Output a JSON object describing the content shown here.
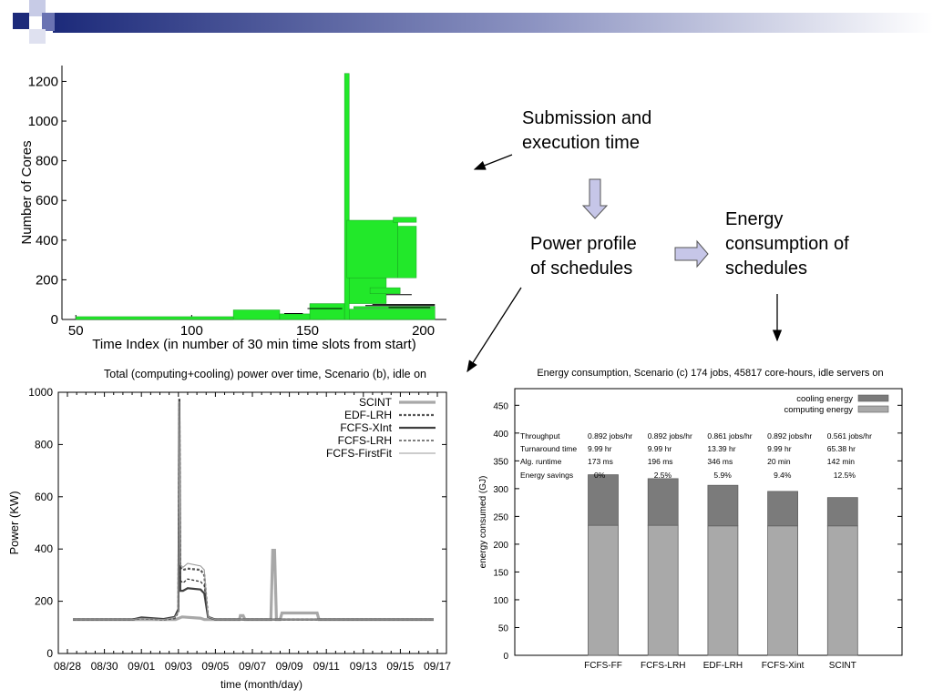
{
  "slide": {
    "labels": {
      "submission": [
        "Submission and",
        "execution time"
      ],
      "power_profile": [
        "Power profile",
        "of schedules"
      ],
      "energy": [
        "Energy",
        "consumption of",
        "schedules"
      ]
    },
    "colors": {
      "header_dark": "#1c2a7a",
      "bright_green": "#22e82a",
      "arrow_fill": "#c6c6e8"
    }
  },
  "chart_data": [
    {
      "type": "bar",
      "title": "",
      "xlabel": "Time Index (in number of 30 min time slots from start)",
      "ylabel": "Number of Cores",
      "xlim": [
        44,
        210
      ],
      "ylim": [
        0,
        1280
      ],
      "xticks": [
        50,
        100,
        150,
        200
      ],
      "yticks": [
        0,
        200,
        400,
        600,
        800,
        1000,
        1200
      ],
      "bar_color": "#22e82a",
      "bars": [
        {
          "x0": 50,
          "x1": 205,
          "y0": 0,
          "y1": 14
        },
        {
          "x0": 118,
          "x1": 138,
          "y0": 0,
          "y1": 48
        },
        {
          "x0": 138,
          "x1": 152,
          "y0": 0,
          "y1": 28
        },
        {
          "x0": 158,
          "x1": 205,
          "y0": 0,
          "y1": 52
        },
        {
          "x0": 151,
          "x1": 166,
          "y0": 0,
          "y1": 80
        },
        {
          "x0": 167,
          "x1": 184,
          "y0": 80,
          "y1": 210
        },
        {
          "x0": 166,
          "x1": 168,
          "y0": 0,
          "y1": 1240
        },
        {
          "x0": 167,
          "x1": 189,
          "y0": 210,
          "y1": 500
        },
        {
          "x0": 189,
          "x1": 197,
          "y0": 210,
          "y1": 470
        },
        {
          "x0": 187,
          "x1": 197,
          "y0": 490,
          "y1": 515
        },
        {
          "x0": 177,
          "x1": 190,
          "y0": 130,
          "y1": 160
        },
        {
          "x0": 170,
          "x1": 205,
          "y0": 55,
          "y1": 65
        }
      ],
      "lines": [
        {
          "x0": 140,
          "x1": 148,
          "y": 30
        },
        {
          "x0": 175,
          "x1": 205,
          "y": 70
        },
        {
          "x0": 178,
          "x1": 205,
          "y": 75
        },
        {
          "x0": 184,
          "x1": 195,
          "y": 125
        },
        {
          "x0": 150,
          "x1": 165,
          "y": 55
        },
        {
          "x0": 185,
          "x1": 203,
          "y": 60
        }
      ]
    },
    {
      "type": "line",
      "title": "Total (computing+cooling) power over time, Scenario (b), idle on",
      "xlabel": "time (month/day)",
      "ylabel": "Power (KW)",
      "xlim": [
        0,
        20
      ],
      "ylim": [
        0,
        1000
      ],
      "xtick_labels": [
        "08/28",
        "08/30",
        "09/01",
        "09/03",
        "09/05",
        "09/07",
        "09/09",
        "09/11",
        "09/13",
        "09/15",
        "09/17"
      ],
      "xtick_values": [
        0,
        2,
        4,
        6,
        8,
        10,
        12,
        14,
        16,
        18,
        20
      ],
      "yticks": [
        0,
        200,
        400,
        600,
        800,
        1000
      ],
      "legend_position": "top-right",
      "series": [
        {
          "name": "SCINT",
          "color": "#a8a8a8",
          "width": 3.2,
          "dash": "",
          "x": [
            0.3,
            5.8,
            5.85,
            6.2,
            7.2,
            7.4,
            9.3,
            9.35,
            9.5,
            9.6,
            11.0,
            11.1,
            11.2,
            11.3,
            11.5,
            11.6,
            13.5,
            13.6,
            19.8
          ],
          "y": [
            130,
            130,
            130,
            140,
            135,
            130,
            130,
            145,
            145,
            130,
            130,
            395,
            395,
            130,
            130,
            155,
            155,
            130,
            130
          ]
        },
        {
          "name": "EDF-LRH",
          "color": "#555555",
          "width": 2.2,
          "dash": "3,2",
          "x": [
            0.3,
            2.0,
            3.5,
            4.0,
            5.2,
            5.8,
            6.0,
            6.05,
            6.1,
            6.25,
            6.5,
            7.2,
            7.4,
            7.6,
            8.0,
            19.8
          ],
          "y": [
            130,
            130,
            130,
            135,
            130,
            135,
            160,
            960,
            330,
            320,
            325,
            320,
            300,
            140,
            130,
            130
          ]
        },
        {
          "name": "FCFS-XInt",
          "color": "#404040",
          "width": 2.2,
          "dash": "",
          "x": [
            0.3,
            3.5,
            4.0,
            5.2,
            5.8,
            6.0,
            6.05,
            6.1,
            6.25,
            6.5,
            7.2,
            7.4,
            7.6,
            8.0,
            19.8
          ],
          "y": [
            130,
            130,
            138,
            132,
            140,
            170,
            975,
            240,
            240,
            250,
            245,
            230,
            140,
            130,
            130
          ]
        },
        {
          "name": "FCFS-LRH",
          "color": "#333333",
          "width": 1.3,
          "dash": "3,2",
          "x": [
            0.3,
            3.5,
            4.0,
            5.2,
            5.8,
            6.0,
            6.05,
            6.1,
            6.25,
            6.5,
            7.2,
            7.4,
            7.6,
            8.0,
            19.8
          ],
          "y": [
            130,
            130,
            135,
            130,
            138,
            165,
            970,
            280,
            270,
            285,
            275,
            260,
            140,
            130,
            130
          ]
        },
        {
          "name": "FCFS-FirstFit",
          "color": "#9a9a9a",
          "width": 1.1,
          "dash": "",
          "x": [
            0.3,
            3.5,
            4.0,
            5.2,
            5.8,
            6.0,
            6.05,
            6.1,
            6.25,
            6.5,
            7.2,
            7.4,
            7.6,
            8.0,
            19.8
          ],
          "y": [
            130,
            130,
            135,
            130,
            138,
            160,
            965,
            340,
            330,
            345,
            335,
            320,
            140,
            130,
            130
          ]
        }
      ]
    },
    {
      "type": "bar",
      "stacked": true,
      "title": "Energy consumption, Scenario (c) 174 jobs, 45817 core-hours, idle servers on",
      "xlabel": "",
      "ylabel": "energy consumed (GJ)",
      "ylim": [
        0,
        480
      ],
      "yticks": [
        0,
        50,
        100,
        150,
        200,
        250,
        300,
        350,
        400,
        450
      ],
      "legend_position": "top-right",
      "categories": [
        "FCFS-FF",
        "FCFS-LRH",
        "EDF-LRH",
        "FCFS-Xint",
        "SCINT"
      ],
      "series": [
        {
          "name": "computing energy",
          "color": "#a9a9a9",
          "values": [
            234,
            234,
            233,
            233,
            233
          ]
        },
        {
          "name": "cooling energy",
          "color": "#7b7b7b",
          "values": [
            91,
            84,
            73,
            62,
            51
          ]
        }
      ],
      "table": {
        "row_labels": [
          "Throughput",
          "Turnaround time",
          "Alg. runtime",
          "Energy savings"
        ],
        "rows": [
          [
            "0.892 jobs/hr",
            "0.892 jobs/hr",
            "0.861 jobs/hr",
            "0.892 jobs/hr",
            "0.561 jobs/hr"
          ],
          [
            "9.99 hr",
            "9.99 hr",
            "13.39 hr",
            "9.99 hr",
            "65.38 hr"
          ],
          [
            "173 ms",
            "196 ms",
            "346 ms",
            "20 min",
            "142 min"
          ],
          [
            "0%",
            "2.5%",
            "5.9%",
            "9.4%",
            "12.5%"
          ]
        ]
      }
    }
  ]
}
